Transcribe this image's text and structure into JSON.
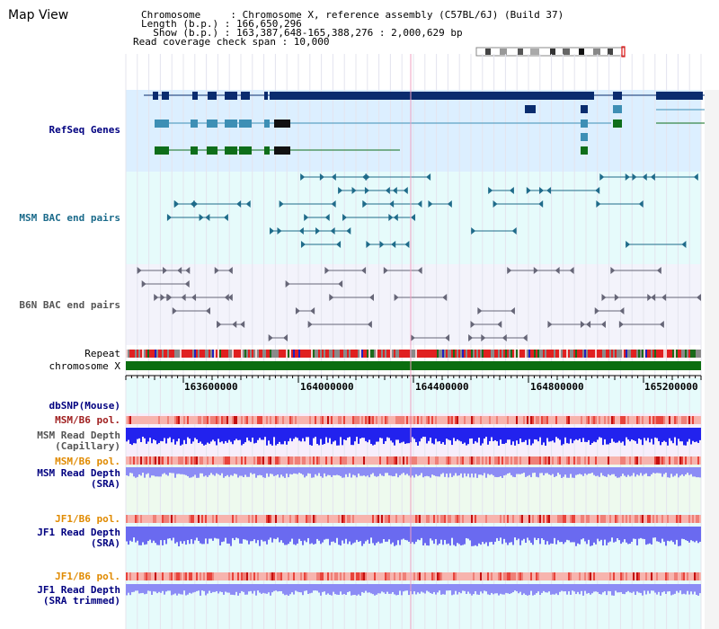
{
  "header": {
    "title": "Map View",
    "info_lines": [
      "Chromosome     : Chromosome X, reference assembly (C57BL/6J) (Build 37)",
      "Length (b.p.) : 166,650,296",
      "  Show (b.p.) : 163,387,648-165,388,276 : 2,000,629 bp",
      "Read coverage check span : 10,000"
    ]
  },
  "tracks": {
    "refseq": "RefSeq Genes",
    "msm_bac": "MSM BAC end pairs",
    "b6n_bac": "B6N BAC end pairs",
    "repeat": "Repeat",
    "chromosome": "chromosome X",
    "dbsnp": "dbSNP(Mouse)",
    "msm_b6_pol_1": "MSM/B6 pol.",
    "msm_read_depth_cap_1": "MSM Read Depth",
    "msm_read_depth_cap_2": "(Capillary)",
    "msm_b6_pol_2": "MSM/B6 pol.",
    "msm_read_depth_sra_1": "MSM Read Depth",
    "msm_read_depth_sra_2": "(SRA)",
    "jf1_b6_pol_1": "JF1/B6 pol.",
    "jf1_read_depth_sra_1": "JF1 Read Depth",
    "jf1_read_depth_sra_2": "(SRA)",
    "jf1_b6_pol_2": "JF1/B6 pol.",
    "jf1_read_depth_trim_1": "JF1 Read Depth",
    "jf1_read_depth_trim_2": "(SRA trimmed)"
  },
  "ruler": {
    "ticks": [
      "163600000",
      "164000000",
      "164400000",
      "164800000",
      "165200000"
    ]
  },
  "colors": {
    "refseq_bg": "#dcefff",
    "bac_bg": "#e6fbfb",
    "b6n_bg": "#f3f3fb",
    "gene_navy": "#0a2c6e",
    "gene_teal": "#3d8fb5",
    "gene_green": "#0e6e1a",
    "bac_teal": "#1f6b8a",
    "chromosome_green": "#0b6e10",
    "pol_red": "#e8443c",
    "depth_blue": "#2222ee",
    "depth_light": "#8c8cf5"
  }
}
